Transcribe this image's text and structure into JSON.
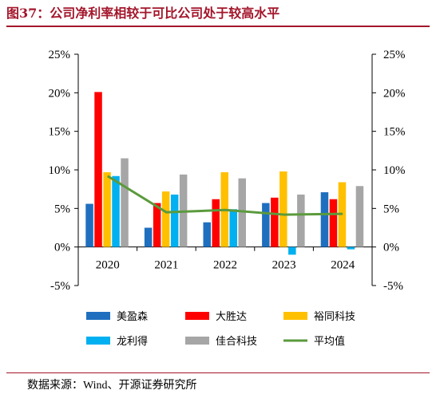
{
  "figure": {
    "title": "图37：公司净利率相较于可比公司处于较高水平",
    "source": "数据来源：Wind、开源证券研究所"
  },
  "chart_data": {
    "type": "bar",
    "categories": [
      "2020",
      "2021",
      "2022",
      "2023",
      "2024"
    ],
    "ylim": [
      -0.05,
      0.25
    ],
    "y_ticks": [
      "-5%",
      "0%",
      "5%",
      "10%",
      "15%",
      "20%",
      "25%"
    ],
    "y_tick_values": [
      -0.05,
      0,
      0.05,
      0.1,
      0.15,
      0.2,
      0.25
    ],
    "grid": false,
    "legend_position": "bottom",
    "series": [
      {
        "name": "美盈森",
        "type": "bar",
        "color": "#1f6fbf",
        "values": [
          0.056,
          0.025,
          0.032,
          0.057,
          0.071
        ]
      },
      {
        "name": "大胜达",
        "type": "bar",
        "color": "#ff0000",
        "values": [
          0.201,
          0.057,
          0.062,
          0.064,
          0.062
        ]
      },
      {
        "name": "裕同科技",
        "type": "bar",
        "color": "#ffc000",
        "values": [
          0.097,
          0.072,
          0.097,
          0.098,
          0.084
        ]
      },
      {
        "name": "龙利得",
        "type": "bar",
        "color": "#00b0f0",
        "values": [
          0.092,
          0.068,
          0.049,
          -0.01,
          -0.003
        ]
      },
      {
        "name": "佳合科技",
        "type": "bar",
        "color": "#a6a6a6",
        "values": [
          0.115,
          0.094,
          0.089,
          0.068,
          0.079
        ]
      },
      {
        "name": "平均值",
        "type": "line",
        "color": "#5b9a3c",
        "values": [
          0.092,
          0.045,
          0.048,
          0.042,
          0.043
        ]
      }
    ]
  }
}
